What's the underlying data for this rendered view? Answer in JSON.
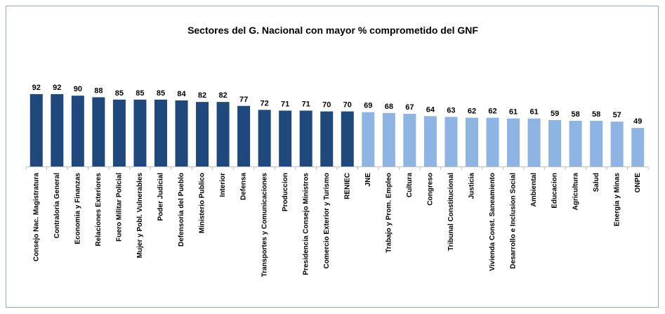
{
  "chart_data": {
    "type": "bar",
    "title": "Sectores del G. Nacional con mayor % comprometido del GNF",
    "categories": [
      "Consejo Nac. Magistratura",
      "Contraloria General",
      "Economia y Finanzas",
      "Relaciones Exteriores",
      "Fuero Militar Policial",
      "Mujer y Pobl. Vulnerables",
      "Poder Judicial",
      "Defensoria del Pueblo",
      "Ministerio Publico",
      "Interior",
      "Defensa",
      "Transportes y Comunicaciones",
      "Produccion",
      "Presidencia Consejo Ministros",
      "Comercio Exterior y Turismo",
      "RENIEC",
      "JNE",
      "Trabajo y Prom. Empleo",
      "Cultura",
      "Congreso",
      "Tribunal Constitucional",
      "Justicia",
      "Vivienda Const. Saneamiento",
      "Desarrollo e Inclusion Social",
      "Ambiental",
      "Educacion",
      "Agricultura",
      "Salud",
      "Energia y Minas",
      "ONPE"
    ],
    "values": [
      92,
      92,
      90,
      88,
      85,
      85,
      85,
      84,
      82,
      82,
      77,
      72,
      71,
      71,
      70,
      70,
      69,
      68,
      67,
      64,
      63,
      62,
      62,
      61,
      61,
      59,
      58,
      58,
      57,
      49
    ],
    "colors": [
      "#1f497d",
      "#1f497d",
      "#1f497d",
      "#1f497d",
      "#1f497d",
      "#1f497d",
      "#1f497d",
      "#1f497d",
      "#1f497d",
      "#1f497d",
      "#1f497d",
      "#1f497d",
      "#1f497d",
      "#1f497d",
      "#1f497d",
      "#1f497d",
      "#8db4e2",
      "#8db4e2",
      "#8db4e2",
      "#8db4e2",
      "#8db4e2",
      "#8db4e2",
      "#8db4e2",
      "#8db4e2",
      "#8db4e2",
      "#8db4e2",
      "#8db4e2",
      "#8db4e2",
      "#8db4e2",
      "#8db4e2"
    ],
    "ylim": [
      0,
      100
    ]
  }
}
